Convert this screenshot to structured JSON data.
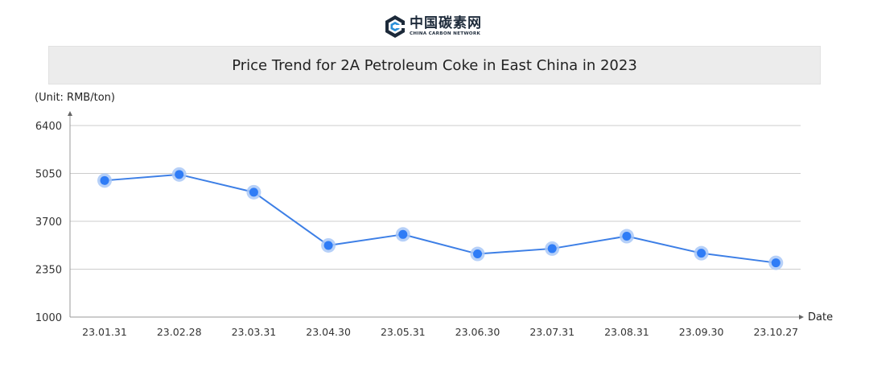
{
  "logo": {
    "name_cn": "中国碳素网",
    "name_en": "CHINA CARBON NETWORK",
    "icon": "carbon-network-logo-icon"
  },
  "chart_data": {
    "type": "line",
    "title": "Price Trend for 2A Petroleum Coke in East China in 2023",
    "ylabel": "(Unit: RMB/ton)",
    "xlabel": "Date",
    "categories": [
      "23.01.31",
      "23.02.28",
      "23.03.31",
      "23.04.30",
      "23.05.31",
      "23.06.30",
      "23.07.31",
      "23.08.31",
      "23.09.30",
      "23.10.27"
    ],
    "series": [
      {
        "values": [
          4850,
          5020,
          4520,
          3020,
          3330,
          2780,
          2930,
          3280,
          2800,
          2530
        ]
      }
    ],
    "ylim": [
      1000,
      6400
    ],
    "yticks": [
      1000,
      2350,
      3700,
      5050,
      6400
    ],
    "grid": true,
    "colors": {
      "line": "#3d7fe6",
      "marker": "#2f7cf6",
      "marker_halo": "#a9c8f7",
      "grid": "#cccccc",
      "axis": "#999999"
    }
  }
}
